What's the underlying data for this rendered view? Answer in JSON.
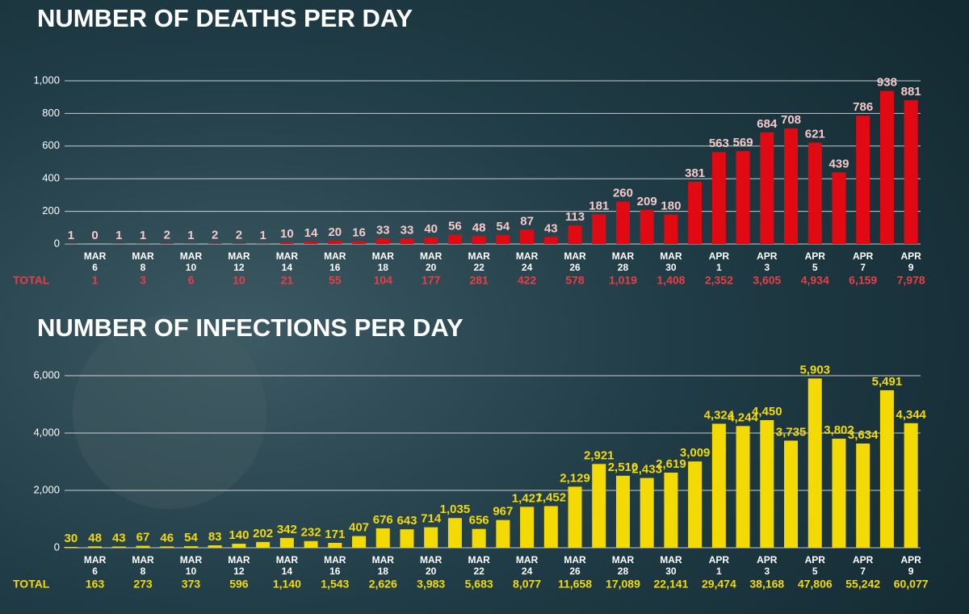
{
  "chart_data": [
    {
      "type": "bar",
      "title": "NUMBER OF DEATHS PER DAY",
      "categories": [
        null,
        "MAR 6",
        null,
        "MAR 8",
        null,
        "MAR 10",
        null,
        "MAR 12",
        null,
        "MAR 14",
        null,
        "MAR 16",
        null,
        "MAR 18",
        null,
        "MAR 20",
        null,
        "MAR 22",
        null,
        "MAR 24",
        null,
        "MAR 26",
        null,
        "MAR 28",
        null,
        "MAR 30",
        null,
        "APR 1",
        null,
        "APR 3",
        null,
        "APR 5",
        null,
        "APR 7",
        null,
        "APR 9"
      ],
      "values": [
        1,
        0,
        1,
        1,
        2,
        1,
        2,
        2,
        1,
        10,
        14,
        20,
        16,
        33,
        33,
        40,
        56,
        48,
        54,
        87,
        43,
        113,
        181,
        260,
        209,
        180,
        381,
        563,
        569,
        684,
        708,
        621,
        439,
        786,
        938,
        881
      ],
      "color": "#e10a12",
      "label_color": "#f6c9c9",
      "total_color": "#ea3d44",
      "ylim": [
        0,
        1000
      ],
      "yticks": [
        0,
        200,
        400,
        600,
        800,
        {
          "value": 1000,
          "label": "1,000"
        }
      ],
      "grid": true,
      "total_label": "TOTAL",
      "totals": [
        "1",
        "3",
        "6",
        "10",
        "21",
        "55",
        "104",
        "177",
        "281",
        "422",
        "578",
        "1,019",
        "1,408",
        "2,352",
        "3,605",
        "4,934",
        "6,159",
        "7,978"
      ]
    },
    {
      "type": "bar",
      "title": "NUMBER OF INFECTIONS PER DAY",
      "categories": [
        null,
        "MAR 6",
        null,
        "MAR 8",
        null,
        "MAR 10",
        null,
        "MAR 12",
        null,
        "MAR 14",
        null,
        "MAR 16",
        null,
        "MAR 18",
        null,
        "MAR 20",
        null,
        "MAR 22",
        null,
        "MAR 24",
        null,
        "MAR 26",
        null,
        "MAR 28",
        null,
        "MAR 30",
        null,
        "APR 1",
        null,
        "APR 3",
        null,
        "APR 5",
        null,
        "APR 7",
        null,
        "APR 9"
      ],
      "values": [
        30,
        48,
        43,
        67,
        46,
        54,
        83,
        140,
        202,
        342,
        232,
        171,
        407,
        676,
        643,
        714,
        1035,
        656,
        967,
        1427,
        1452,
        2129,
        2921,
        2510,
        2433,
        2619,
        3009,
        4324,
        4244,
        4450,
        3735,
        5903,
        3802,
        3634,
        5491,
        4344
      ],
      "value_labels": [
        "30",
        "48",
        "43",
        "67",
        "46",
        "54",
        "83",
        "140",
        "202",
        "342",
        "232",
        "171",
        "407",
        "676",
        "643",
        "714",
        "1,035",
        "656",
        "967",
        "1,427",
        "1,452",
        "2,129",
        "2,921",
        "2,510",
        "2,433",
        "2,619",
        "3,009",
        "4,324",
        "4,244",
        "4,450",
        "3,735",
        "5,903",
        "3,802",
        "3,634",
        "5,491",
        "4,344"
      ],
      "color": "#f4da05",
      "label_color": "#f4da05",
      "total_color": "#f4da05",
      "ylim": [
        0,
        6000
      ],
      "yticks": [
        0,
        {
          "value": 2000,
          "label": "2,000"
        },
        {
          "value": 4000,
          "label": "4,000"
        },
        {
          "value": 6000,
          "label": "6,000"
        }
      ],
      "grid": true,
      "total_label": "TOTAL",
      "totals": [
        "163",
        "273",
        "373",
        "596",
        "1,140",
        "1,543",
        "2,626",
        "3,983",
        "5,683",
        "8,077",
        "11,658",
        "17,089",
        "22,141",
        "29,474",
        "38,168",
        "47,806",
        "55,242",
        "60,077"
      ]
    }
  ]
}
